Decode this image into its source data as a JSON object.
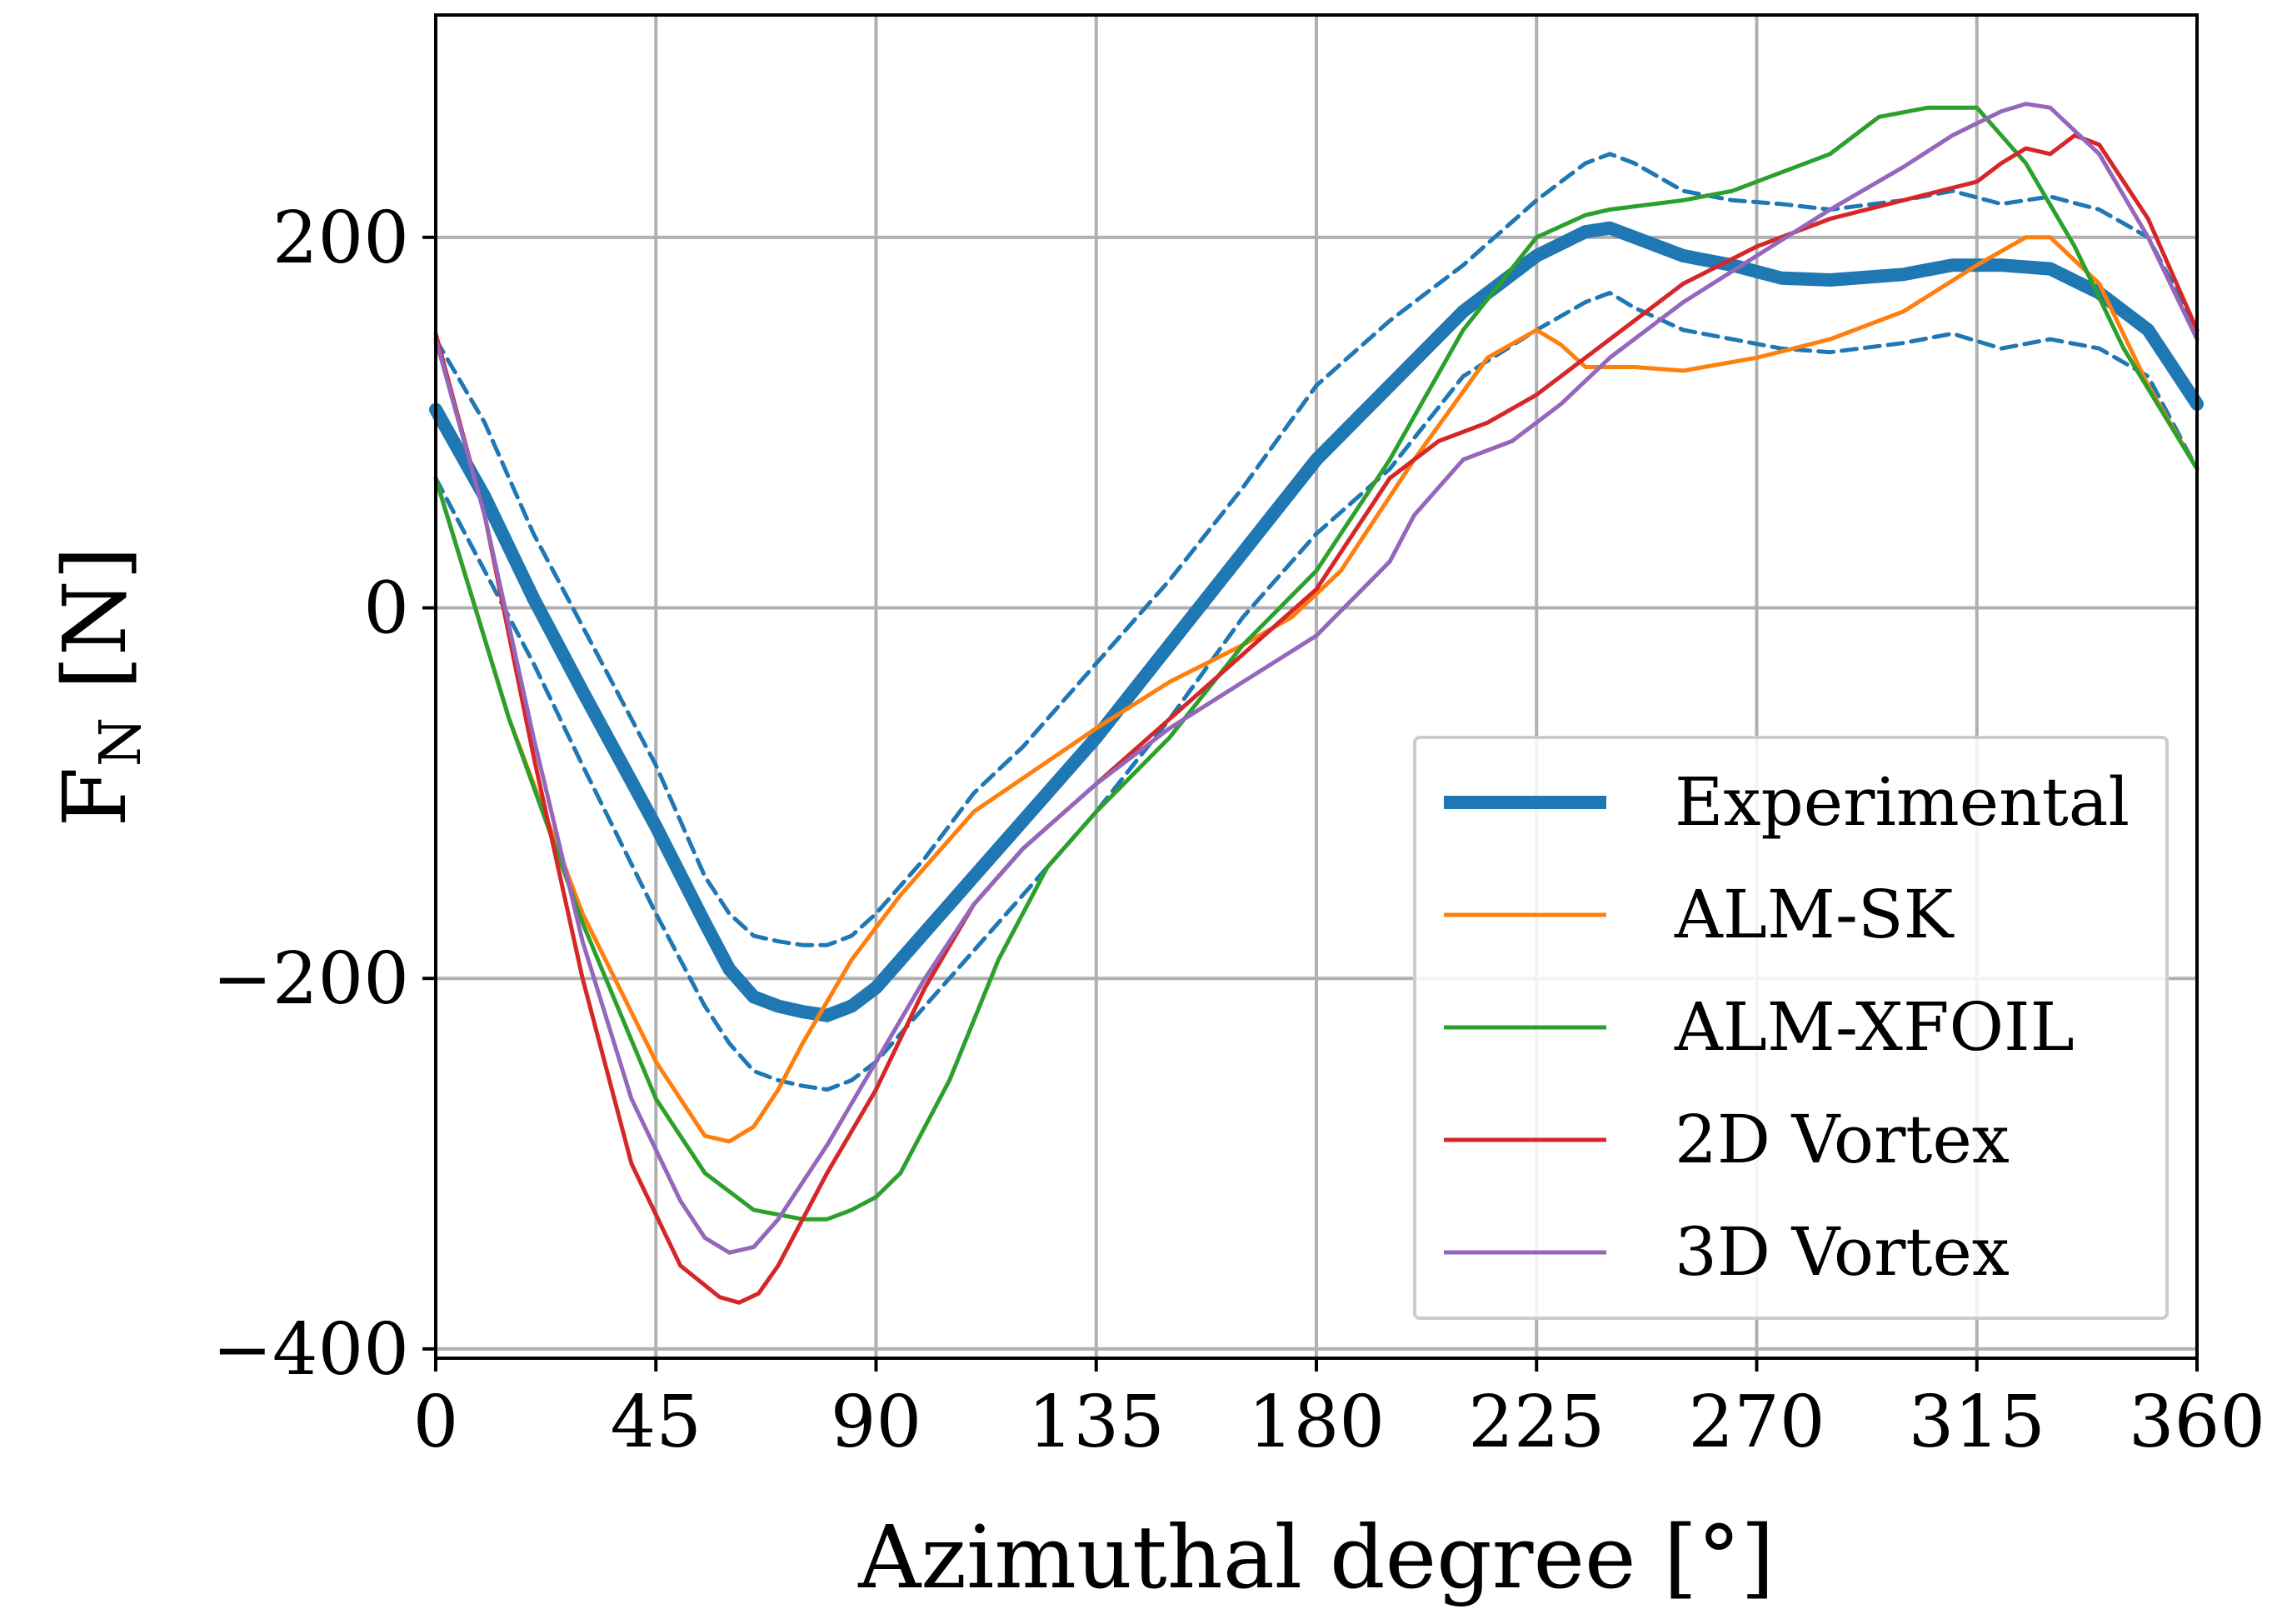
{
  "chart_data": {
    "type": "line",
    "title": "",
    "xlabel": "Azimuthal degree [°]",
    "ylabel_main": "F",
    "ylabel_sub": "N",
    "ylabel_unit": " [N]",
    "xlim": [
      0,
      360
    ],
    "ylim": [
      -405,
      320
    ],
    "xticks": [
      0,
      45,
      90,
      135,
      180,
      225,
      270,
      315,
      360
    ],
    "xtick_labels": [
      "0",
      "45",
      "90",
      "135",
      "180",
      "225",
      "270",
      "315",
      "360"
    ],
    "yticks": [
      -400,
      -200,
      0,
      200
    ],
    "ytick_labels": [
      "−400",
      "−200",
      "0",
      "200"
    ],
    "grid": true,
    "legend_position": "lower-right",
    "series": [
      {
        "name": "Experimental",
        "color": "#1f77b4",
        "style": "thick",
        "x": [
          0,
          10,
          20,
          30,
          45,
          55,
          60,
          65,
          70,
          75,
          80,
          85,
          90,
          100,
          110,
          120,
          135,
          150,
          165,
          180,
          195,
          210,
          225,
          235,
          240,
          245,
          255,
          265,
          275,
          285,
          300,
          310,
          320,
          330,
          340,
          350,
          360
        ],
        "y": [
          107,
          60,
          5,
          -45,
          -118,
          -170,
          -195,
          -210,
          -215,
          -218,
          -220,
          -215,
          -205,
          -175,
          -145,
          -115,
          -70,
          -20,
          30,
          80,
          120,
          160,
          190,
          203,
          205,
          200,
          190,
          185,
          178,
          177,
          180,
          185,
          185,
          183,
          170,
          150,
          110
        ]
      },
      {
        "name": "Experimental upper band",
        "color": "#1f77b4",
        "style": "dashed",
        "x": [
          0,
          10,
          20,
          30,
          45,
          55,
          60,
          65,
          70,
          75,
          80,
          85,
          90,
          100,
          110,
          120,
          135,
          150,
          165,
          180,
          195,
          210,
          225,
          235,
          240,
          245,
          255,
          265,
          275,
          285,
          300,
          310,
          320,
          330,
          340,
          350,
          360
        ],
        "y": [
          145,
          100,
          40,
          -10,
          -85,
          -145,
          -165,
          -177,
          -180,
          -182,
          -182,
          -177,
          -165,
          -135,
          -100,
          -75,
          -30,
          15,
          65,
          120,
          155,
          185,
          220,
          240,
          245,
          240,
          225,
          220,
          218,
          215,
          220,
          225,
          218,
          222,
          215,
          200,
          150
        ]
      },
      {
        "name": "Experimental lower band",
        "color": "#1f77b4",
        "style": "dashed",
        "x": [
          0,
          10,
          20,
          30,
          45,
          55,
          60,
          65,
          70,
          75,
          80,
          85,
          90,
          100,
          110,
          120,
          135,
          150,
          165,
          180,
          195,
          210,
          225,
          235,
          240,
          245,
          255,
          265,
          275,
          285,
          300,
          310,
          320,
          330,
          340,
          350,
          360
        ],
        "y": [
          70,
          20,
          -30,
          -85,
          -165,
          -215,
          -235,
          -250,
          -255,
          -258,
          -260,
          -255,
          -245,
          -215,
          -185,
          -155,
          -110,
          -60,
          -5,
          40,
          75,
          125,
          150,
          165,
          170,
          162,
          150,
          145,
          140,
          138,
          143,
          148,
          140,
          145,
          140,
          125,
          75
        ]
      },
      {
        "name": "ALM-SK",
        "color": "#ff7f0e",
        "style": "solid",
        "x": [
          0,
          15,
          30,
          45,
          55,
          60,
          65,
          70,
          75,
          85,
          95,
          110,
          135,
          150,
          165,
          175,
          185,
          200,
          215,
          225,
          230,
          235,
          245,
          255,
          270,
          285,
          300,
          315,
          325,
          330,
          340,
          350,
          360
        ],
        "y": [
          70,
          -60,
          -165,
          -245,
          -285,
          -288,
          -280,
          -260,
          -235,
          -190,
          -155,
          -110,
          -65,
          -40,
          -20,
          -5,
          20,
          80,
          135,
          150,
          142,
          130,
          130,
          128,
          135,
          145,
          160,
          185,
          200,
          200,
          175,
          120,
          75
        ]
      },
      {
        "name": "ALM-XFOIL",
        "color": "#2ca02c",
        "style": "solid",
        "x": [
          0,
          15,
          30,
          45,
          55,
          65,
          75,
          80,
          85,
          90,
          95,
          105,
          115,
          125,
          135,
          150,
          165,
          180,
          195,
          210,
          225,
          235,
          240,
          255,
          265,
          285,
          295,
          305,
          315,
          325,
          335,
          345,
          360
        ],
        "y": [
          70,
          -60,
          -170,
          -265,
          -305,
          -325,
          -330,
          -330,
          -325,
          -318,
          -305,
          -255,
          -190,
          -140,
          -110,
          -70,
          -20,
          20,
          80,
          150,
          200,
          212,
          215,
          220,
          225,
          245,
          265,
          270,
          270,
          240,
          195,
          140,
          75
        ]
      },
      {
        "name": "2D Vortex",
        "color": "#d62728",
        "style": "solid",
        "x": [
          0,
          10,
          20,
          30,
          40,
          50,
          58,
          62,
          66,
          70,
          75,
          80,
          90,
          100,
          110,
          120,
          135,
          150,
          165,
          180,
          195,
          205,
          215,
          225,
          240,
          255,
          270,
          285,
          300,
          315,
          320,
          325,
          330,
          335,
          340,
          350,
          360
        ],
        "y": [
          148,
          50,
          -80,
          -200,
          -300,
          -355,
          -372,
          -375,
          -370,
          -355,
          -330,
          -305,
          -260,
          -205,
          -160,
          -130,
          -95,
          -60,
          -25,
          10,
          70,
          90,
          100,
          115,
          145,
          175,
          195,
          210,
          220,
          230,
          240,
          248,
          245,
          255,
          250,
          210,
          150
        ]
      },
      {
        "name": "3D Vortex",
        "color": "#9467bd",
        "style": "solid",
        "x": [
          0,
          10,
          20,
          30,
          40,
          50,
          55,
          60,
          65,
          70,
          75,
          80,
          90,
          100,
          110,
          120,
          135,
          150,
          165,
          180,
          195,
          200,
          210,
          220,
          230,
          240,
          255,
          270,
          285,
          300,
          310,
          320,
          325,
          330,
          340,
          350,
          360
        ],
        "y": [
          145,
          50,
          -70,
          -180,
          -265,
          -320,
          -340,
          -348,
          -345,
          -330,
          -310,
          -290,
          -245,
          -200,
          -160,
          -130,
          -95,
          -65,
          -40,
          -15,
          25,
          50,
          80,
          90,
          110,
          135,
          165,
          190,
          215,
          238,
          255,
          268,
          272,
          270,
          245,
          200,
          145
        ]
      }
    ],
    "legend": [
      {
        "label": "Experimental",
        "color": "#1f77b4",
        "style": "thick"
      },
      {
        "label": "ALM-SK",
        "color": "#ff7f0e",
        "style": "solid"
      },
      {
        "label": "ALM-XFOIL",
        "color": "#2ca02c",
        "style": "solid"
      },
      {
        "label": "2D Vortex",
        "color": "#d62728",
        "style": "solid"
      },
      {
        "label": "3D Vortex",
        "color": "#9467bd",
        "style": "solid"
      }
    ]
  }
}
